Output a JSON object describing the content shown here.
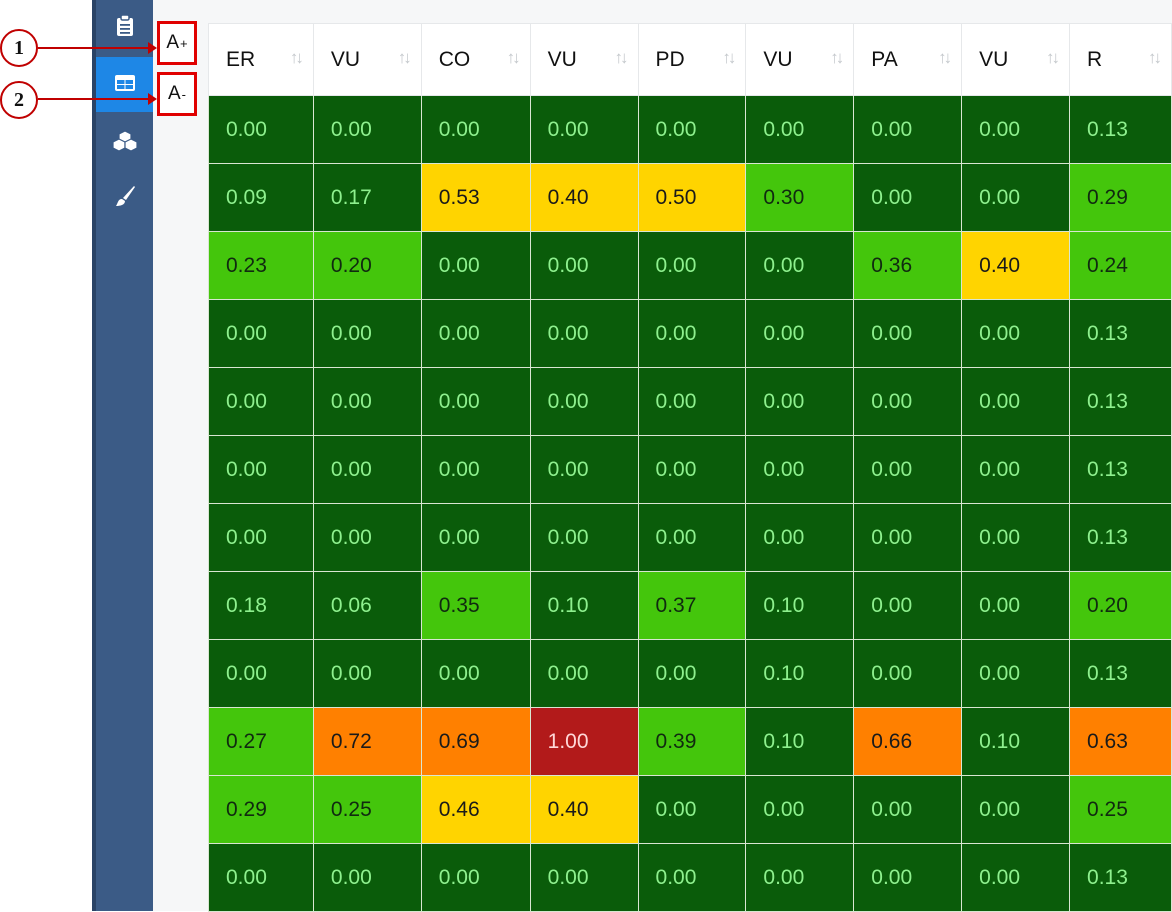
{
  "sidebar": {
    "items": [
      {
        "icon": "clipboard-icon",
        "active": false
      },
      {
        "icon": "table-icon",
        "active": true
      },
      {
        "icon": "cubes-icon",
        "active": false
      },
      {
        "icon": "paint-brush-icon",
        "active": false
      }
    ]
  },
  "font_controls": {
    "increase_label": "A",
    "increase_sup": "+",
    "decrease_label": "A",
    "decrease_sup": "-"
  },
  "annotations": {
    "one": "1",
    "two": "2"
  },
  "colors": {
    "dark_green": "#0a5c0a",
    "light_green": "#44c60c",
    "yellow": "#ffd400",
    "orange": "#ff8000",
    "red": "#b21a1a",
    "sidebar": "#3b5b86",
    "sidebar_active": "#1e87e6",
    "callout_red": "#e00000"
  },
  "table": {
    "sort_icon": "↑↓",
    "columns": [
      "ER",
      "VU",
      "CO",
      "VU",
      "PD",
      "VU",
      "PA",
      "VU",
      "R"
    ],
    "rows": [
      [
        "0.00",
        "0.00",
        "0.00",
        "0.00",
        "0.00",
        "0.00",
        "0.00",
        "0.00",
        "0.13"
      ],
      [
        "0.09",
        "0.17",
        "0.53",
        "0.40",
        "0.50",
        "0.30",
        "0.00",
        "0.00",
        "0.29"
      ],
      [
        "0.23",
        "0.20",
        "0.00",
        "0.00",
        "0.00",
        "0.00",
        "0.36",
        "0.40",
        "0.24"
      ],
      [
        "0.00",
        "0.00",
        "0.00",
        "0.00",
        "0.00",
        "0.00",
        "0.00",
        "0.00",
        "0.13"
      ],
      [
        "0.00",
        "0.00",
        "0.00",
        "0.00",
        "0.00",
        "0.00",
        "0.00",
        "0.00",
        "0.13"
      ],
      [
        "0.00",
        "0.00",
        "0.00",
        "0.00",
        "0.00",
        "0.00",
        "0.00",
        "0.00",
        "0.13"
      ],
      [
        "0.00",
        "0.00",
        "0.00",
        "0.00",
        "0.00",
        "0.00",
        "0.00",
        "0.00",
        "0.13"
      ],
      [
        "0.18",
        "0.06",
        "0.35",
        "0.10",
        "0.37",
        "0.10",
        "0.00",
        "0.00",
        "0.20"
      ],
      [
        "0.00",
        "0.00",
        "0.00",
        "0.00",
        "0.00",
        "0.10",
        "0.00",
        "0.00",
        "0.13"
      ],
      [
        "0.27",
        "0.72",
        "0.69",
        "1.00",
        "0.39",
        "0.10",
        "0.66",
        "0.10",
        "0.63"
      ],
      [
        "0.29",
        "0.25",
        "0.46",
        "0.40",
        "0.00",
        "0.00",
        "0.00",
        "0.00",
        "0.25"
      ],
      [
        "0.00",
        "0.00",
        "0.00",
        "0.00",
        "0.00",
        "0.00",
        "0.00",
        "0.00",
        "0.13"
      ]
    ],
    "cell_colors": [
      [
        "dg",
        "dg",
        "dg",
        "dg",
        "dg",
        "dg",
        "dg",
        "dg",
        "dg"
      ],
      [
        "dg",
        "dg",
        "y",
        "y",
        "y",
        "lg",
        "dg",
        "dg",
        "lg"
      ],
      [
        "lg",
        "lg",
        "dg",
        "dg",
        "dg",
        "dg",
        "lg",
        "y",
        "lg"
      ],
      [
        "dg",
        "dg",
        "dg",
        "dg",
        "dg",
        "dg",
        "dg",
        "dg",
        "dg"
      ],
      [
        "dg",
        "dg",
        "dg",
        "dg",
        "dg",
        "dg",
        "dg",
        "dg",
        "dg"
      ],
      [
        "dg",
        "dg",
        "dg",
        "dg",
        "dg",
        "dg",
        "dg",
        "dg",
        "dg"
      ],
      [
        "dg",
        "dg",
        "dg",
        "dg",
        "dg",
        "dg",
        "dg",
        "dg",
        "dg"
      ],
      [
        "dg",
        "dg",
        "lg",
        "dg",
        "lg",
        "dg",
        "dg",
        "dg",
        "lg"
      ],
      [
        "dg",
        "dg",
        "dg",
        "dg",
        "dg",
        "dg",
        "dg",
        "dg",
        "dg"
      ],
      [
        "lg",
        "o",
        "o",
        "r",
        "lg",
        "dg",
        "o",
        "dg",
        "o"
      ],
      [
        "lg",
        "lg",
        "y",
        "y",
        "dg",
        "dg",
        "dg",
        "dg",
        "lg"
      ],
      [
        "dg",
        "dg",
        "dg",
        "dg",
        "dg",
        "dg",
        "dg",
        "dg",
        "dg"
      ]
    ]
  }
}
